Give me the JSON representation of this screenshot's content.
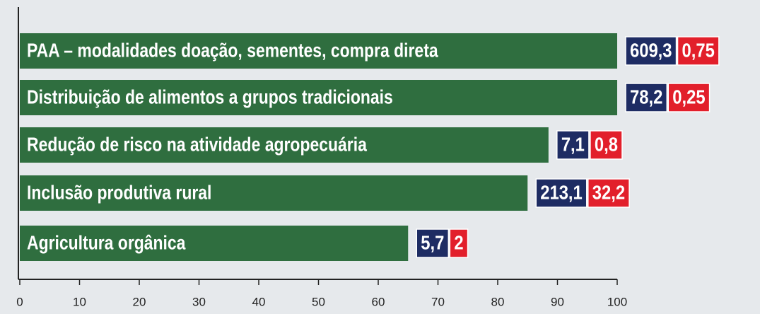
{
  "chart_data": {
    "type": "bar",
    "orientation": "horizontal",
    "categories": [
      "PAA – modalidades doação, sementes, compra direta",
      "Distribuição de alimentos a grupos tradicionais",
      "Redução de risco na atividade agropecuária",
      "Inclusão produtiva rural",
      "Agricultura orgânica"
    ],
    "values": [
      100,
      100,
      88.5,
      85,
      65
    ],
    "color": "#2f6e3f",
    "xlim": [
      0,
      100
    ],
    "xticks": [
      0,
      10,
      20,
      30,
      40,
      50,
      60,
      70,
      80,
      90,
      100
    ],
    "boxes": [
      {
        "color": "#1e2c63",
        "values": [
          609.3,
          78.2,
          7.1,
          213.1,
          5.7
        ],
        "value_labels": [
          "609,3",
          "78,2",
          "7,1",
          "213,1",
          "5,7"
        ]
      },
      {
        "color": "#e21f2b",
        "values": [
          0.75,
          0.25,
          0.8,
          32.2,
          2
        ],
        "value_labels": [
          "0,75",
          "0,25",
          "0,8",
          "32,2",
          "2"
        ]
      }
    ]
  }
}
